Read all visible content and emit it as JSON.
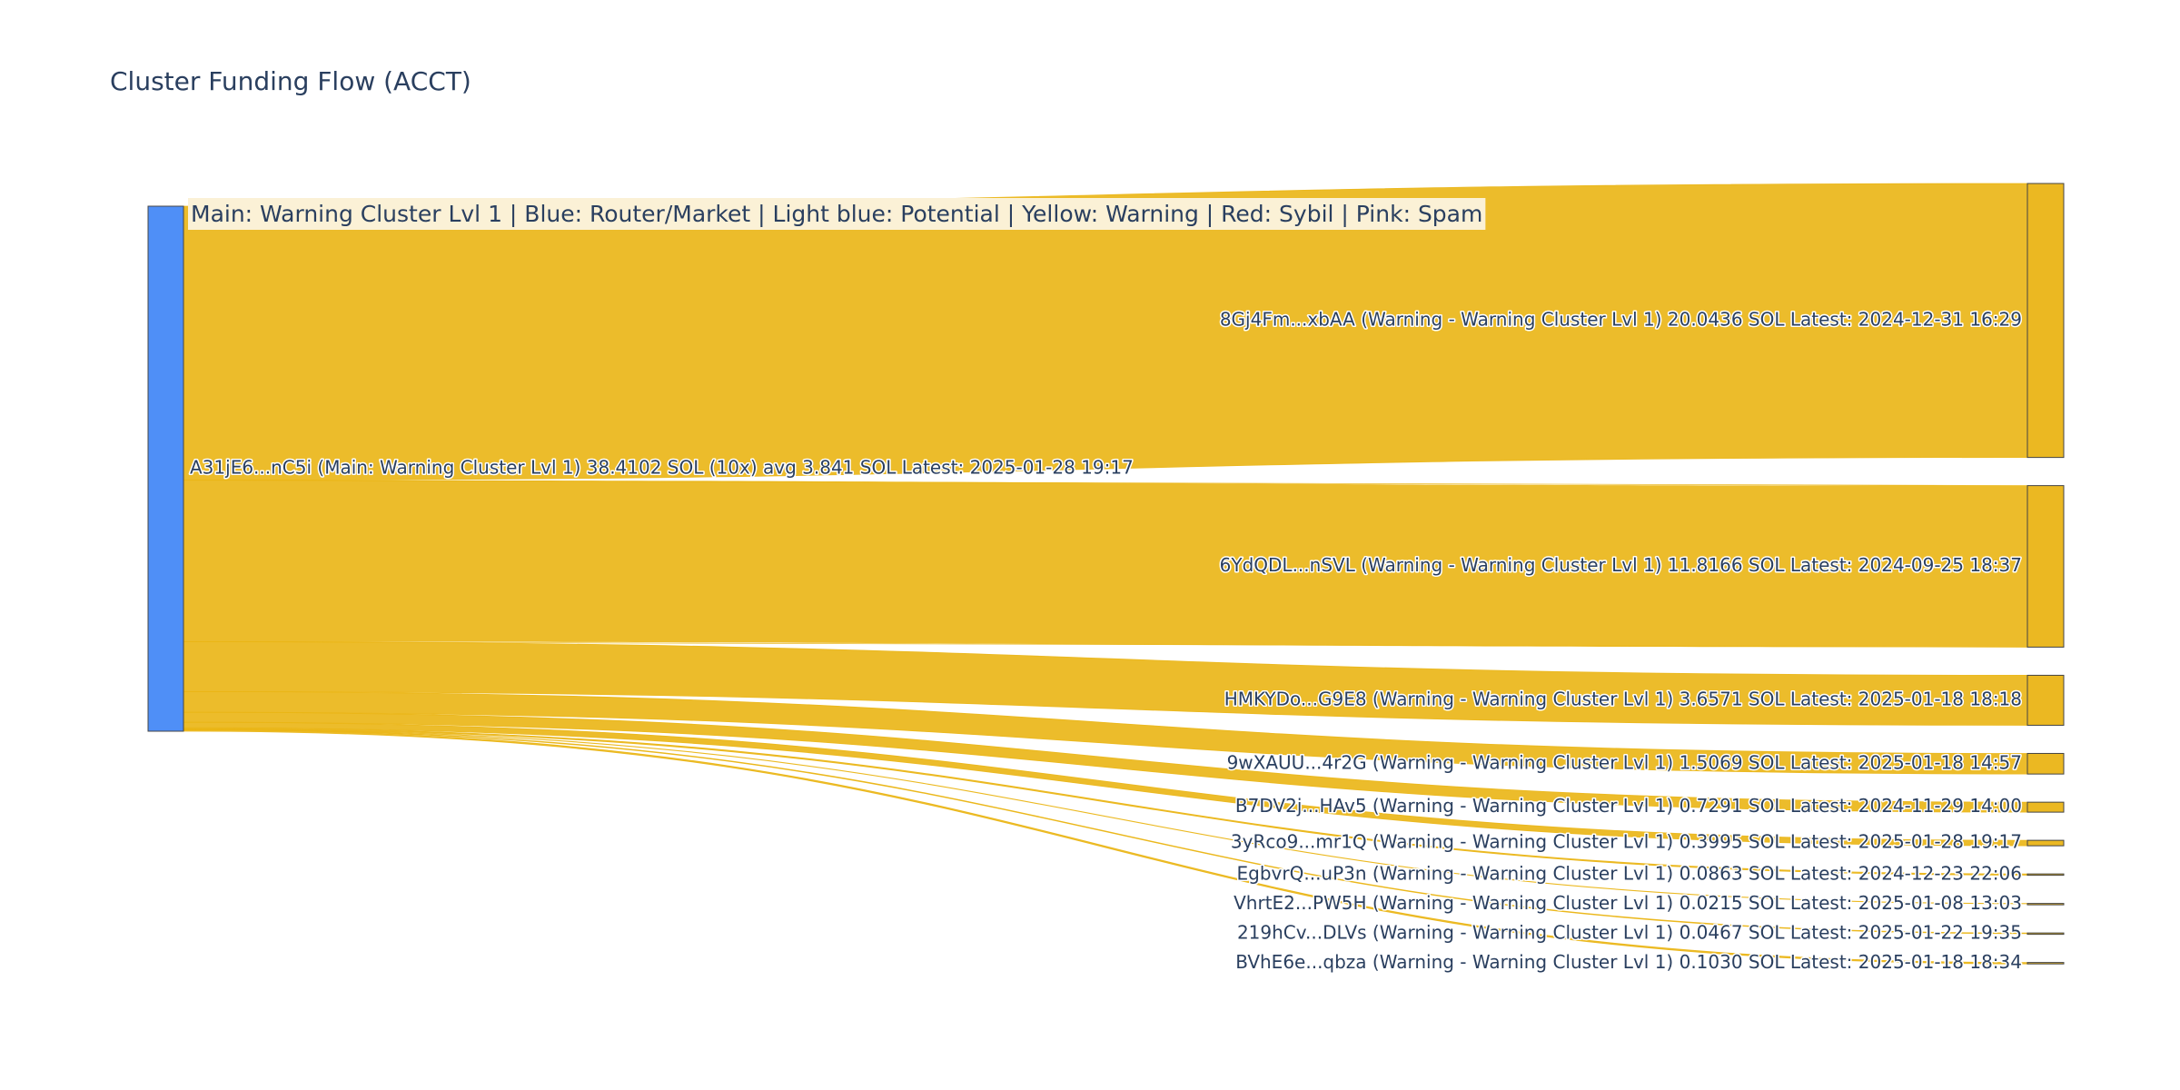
{
  "chart_data": {
    "type": "sankey",
    "title": "Cluster Funding Flow (ACCT)",
    "annotation": "Main: Warning Cluster Lvl 1  |  Blue: Router/Market | Light blue: Potential | Yellow: Warning | Red: Sybil | Pink: Spam",
    "link_color": "rgba(234,181,20,0.9)",
    "nodes": [
      {
        "label": "A31jE6...nC5i (Main: Warning Cluster Lvl 1) 38.4102 SOL (10x) avg 3.841 SOL Latest: 2025-01-28 19:17",
        "color": "#4f8ff7"
      },
      {
        "label": "8Gj4Fm...xbAA (Warning - Warning Cluster Lvl 1) 20.0436 SOL Latest: 2024-12-31 16:29",
        "color": "#ebb822"
      },
      {
        "label": "6YdQDL...nSVL (Warning - Warning Cluster Lvl 1) 11.8166 SOL Latest: 2024-09-25 18:37",
        "color": "#ebb822"
      },
      {
        "label": "HMKYDo...G9E8 (Warning - Warning Cluster Lvl 1) 3.6571 SOL Latest: 2025-01-18 18:18",
        "color": "#ebb822"
      },
      {
        "label": "9wXAUU...4r2G (Warning - Warning Cluster Lvl 1) 1.5069 SOL Latest: 2025-01-18 14:57",
        "color": "#ebb822"
      },
      {
        "label": "B7DV2j...HAv5 (Warning - Warning Cluster Lvl 1) 0.7291 SOL Latest: 2024-11-29 14:00",
        "color": "#ebb822"
      },
      {
        "label": "3yRco9...mr1Q (Warning - Warning Cluster Lvl 1) 0.3995 SOL Latest: 2025-01-28 19:17",
        "color": "#ebb822"
      },
      {
        "label": "EgbvrQ...uP3n (Warning - Warning Cluster Lvl 1) 0.0863 SOL Latest: 2024-12-23 22:06",
        "color": "#ebb822"
      },
      {
        "label": "VhrtE2...PW5H (Warning - Warning Cluster Lvl 1) 0.0215 SOL Latest: 2025-01-08 13:03",
        "color": "#ebb822"
      },
      {
        "label": "219hCv...DLVs (Warning - Warning Cluster Lvl 1) 0.0467 SOL Latest: 2025-01-22 19:35",
        "color": "#ebb822"
      },
      {
        "label": "BVhE6e...qbza (Warning - Warning Cluster Lvl 1) 0.1030 SOL Latest: 2025-01-18 18:34",
        "color": "#ebb822"
      }
    ],
    "links": [
      {
        "source": 0,
        "target": 1,
        "value": 20.0436
      },
      {
        "source": 0,
        "target": 2,
        "value": 11.8166
      },
      {
        "source": 0,
        "target": 3,
        "value": 3.6571
      },
      {
        "source": 0,
        "target": 4,
        "value": 1.5069
      },
      {
        "source": 0,
        "target": 5,
        "value": 0.7291
      },
      {
        "source": 0,
        "target": 6,
        "value": 0.3995
      },
      {
        "source": 0,
        "target": 7,
        "value": 0.0863
      },
      {
        "source": 0,
        "target": 8,
        "value": 0.0215
      },
      {
        "source": 0,
        "target": 9,
        "value": 0.0467
      },
      {
        "source": 0,
        "target": 10,
        "value": 0.103
      }
    ]
  }
}
